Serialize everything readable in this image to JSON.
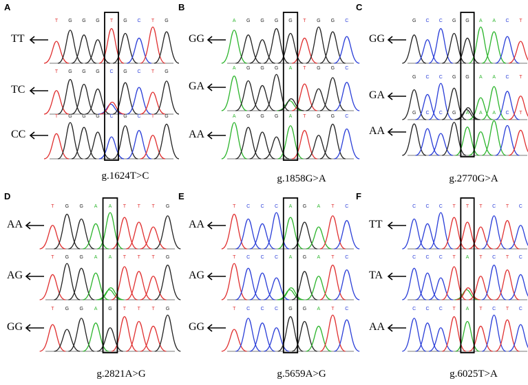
{
  "colors": {
    "A": "#2db52d",
    "C": "#2a3ed8",
    "G": "#222222",
    "T": "#e03030"
  },
  "panels": [
    {
      "label": "A",
      "caption": "g.1624T>C",
      "seq": [
        "T",
        "G",
        "G",
        "G",
        "T",
        "G",
        "C",
        "T",
        "G"
      ],
      "rows": [
        {
          "genotype": "TT",
          "seq": [
            "T",
            "G",
            "G",
            "G",
            "T",
            "G",
            "C",
            "T",
            "G"
          ]
        },
        {
          "genotype": "TC",
          "seq": [
            "T",
            "G",
            "G",
            "G",
            "C",
            "G",
            "C",
            "T",
            "G"
          ]
        },
        {
          "genotype": "CC",
          "seq": [
            "T",
            "G",
            "G",
            "G",
            "C",
            "G",
            "C",
            "T",
            "G"
          ]
        }
      ]
    },
    {
      "label": "B",
      "caption": "g.1858G>A",
      "seq": [
        "A",
        "G",
        "G",
        "G",
        "G",
        "T",
        "G",
        "G",
        "C"
      ],
      "rows": [
        {
          "genotype": "GG",
          "seq": [
            "A",
            "G",
            "G",
            "G",
            "G",
            "T",
            "G",
            "G",
            "C"
          ]
        },
        {
          "genotype": "GA",
          "seq": [
            "A",
            "G",
            "G",
            "G",
            "A",
            "T",
            "G",
            "G",
            "C"
          ]
        },
        {
          "genotype": "AA",
          "seq": [
            "A",
            "G",
            "G",
            "G",
            "A",
            "T",
            "G",
            "G",
            "C"
          ]
        }
      ]
    },
    {
      "label": "C",
      "caption": "g.2770G>A",
      "seq": [
        "G",
        "C",
        "C",
        "G",
        "G",
        "A",
        "A",
        "C",
        "T"
      ],
      "rows": [
        {
          "genotype": "GG",
          "seq": [
            "G",
            "C",
            "C",
            "G",
            "G",
            "A",
            "A",
            "C",
            "T"
          ]
        },
        {
          "genotype": "GA",
          "seq": [
            "G",
            "C",
            "C",
            "G",
            "G",
            "A",
            "A",
            "C",
            "T"
          ]
        },
        {
          "genotype": "AA",
          "seq": [
            "G",
            "C",
            "C",
            "G",
            "A",
            "A",
            "A",
            "C",
            "T"
          ]
        }
      ]
    },
    {
      "label": "D",
      "caption": "g.2821A>G",
      "seq": [
        "T",
        "G",
        "G",
        "A",
        "A",
        "T",
        "T",
        "T",
        "G"
      ],
      "rows": [
        {
          "genotype": "AA",
          "seq": [
            "T",
            "G",
            "G",
            "A",
            "A",
            "T",
            "T",
            "T",
            "G"
          ]
        },
        {
          "genotype": "AG",
          "seq": [
            "T",
            "G",
            "G",
            "A",
            "A",
            "T",
            "T",
            "T",
            "G"
          ]
        },
        {
          "genotype": "GG",
          "seq": [
            "T",
            "G",
            "G",
            "A",
            "G",
            "T",
            "T",
            "T",
            "G"
          ]
        }
      ]
    },
    {
      "label": "E",
      "caption": "g.5659A>G",
      "seq": [
        "T",
        "C",
        "C",
        "C",
        "A",
        "G",
        "A",
        "T",
        "C"
      ],
      "rows": [
        {
          "genotype": "AA",
          "seq": [
            "T",
            "C",
            "C",
            "C",
            "A",
            "G",
            "A",
            "T",
            "C"
          ]
        },
        {
          "genotype": "AG",
          "seq": [
            "T",
            "C",
            "C",
            "C",
            "A",
            "G",
            "A",
            "T",
            "C"
          ]
        },
        {
          "genotype": "GG",
          "seq": [
            "T",
            "C",
            "C",
            "C",
            "G",
            "G",
            "A",
            "T",
            "C"
          ]
        }
      ]
    },
    {
      "label": "F",
      "caption": "g.6025T>A",
      "seq": [
        "C",
        "C",
        "C",
        "T",
        "T",
        "T",
        "C",
        "T",
        "C"
      ],
      "rows": [
        {
          "genotype": "TT",
          "seq": [
            "C",
            "C",
            "C",
            "T",
            "T",
            "T",
            "C",
            "T",
            "C"
          ]
        },
        {
          "genotype": "TA",
          "seq": [
            "C",
            "C",
            "C",
            "T",
            "A",
            "T",
            "C",
            "T",
            "C"
          ]
        },
        {
          "genotype": "AA",
          "seq": [
            "C",
            "C",
            "C",
            "T",
            "A",
            "T",
            "C",
            "T",
            "C"
          ]
        }
      ]
    }
  ],
  "heterozygous": {
    "A": [
      1
    ],
    "B": [
      1
    ],
    "C": [
      1
    ],
    "D": [
      1
    ],
    "E": [
      1
    ],
    "F": [
      1
    ]
  }
}
